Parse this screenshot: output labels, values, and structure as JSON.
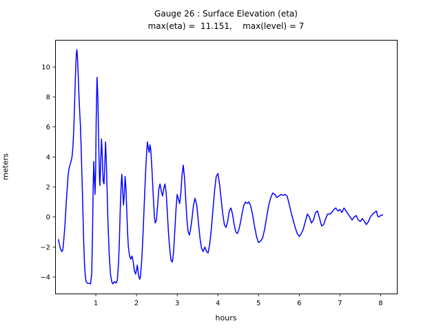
{
  "figure": {
    "background": "#ffffff",
    "axes_edge_color": "#000000"
  },
  "chart_data": {
    "type": "line",
    "title": "Gauge 26 : Surface Elevation (eta)",
    "subtitle": "max(eta) =  11.151,    max(level) = 7",
    "xlabel": "hours",
    "ylabel": "meters",
    "xlim": [
      0.0,
      8.4
    ],
    "ylim": [
      -5.1,
      11.8
    ],
    "xticks": [
      1,
      2,
      3,
      4,
      5,
      6,
      7,
      8
    ],
    "yticks": [
      -4,
      -2,
      0,
      2,
      4,
      6,
      8,
      10
    ],
    "grid": false,
    "legend": "none",
    "line_color": "#0000ff",
    "max_eta": 11.151,
    "max_level": 7,
    "series": [
      {
        "name": "eta",
        "points": [
          [
            0.08,
            -1.5
          ],
          [
            0.1,
            -1.75
          ],
          [
            0.13,
            -2.1
          ],
          [
            0.16,
            -2.3
          ],
          [
            0.19,
            -2.2
          ],
          [
            0.21,
            -1.6
          ],
          [
            0.24,
            -0.6
          ],
          [
            0.27,
            0.8
          ],
          [
            0.3,
            2.0
          ],
          [
            0.32,
            2.8
          ],
          [
            0.34,
            3.2
          ],
          [
            0.37,
            3.5
          ],
          [
            0.4,
            3.8
          ],
          [
            0.42,
            4.1
          ],
          [
            0.44,
            4.8
          ],
          [
            0.46,
            6.0
          ],
          [
            0.48,
            7.6
          ],
          [
            0.5,
            9.4
          ],
          [
            0.52,
            10.8
          ],
          [
            0.535,
            11.151
          ],
          [
            0.55,
            10.6
          ],
          [
            0.57,
            9.2
          ],
          [
            0.59,
            7.8
          ],
          [
            0.62,
            6.2
          ],
          [
            0.64,
            4.6
          ],
          [
            0.66,
            2.6
          ],
          [
            0.68,
            0.6
          ],
          [
            0.7,
            -1.4
          ],
          [
            0.72,
            -3.0
          ],
          [
            0.74,
            -3.9
          ],
          [
            0.76,
            -4.3
          ],
          [
            0.79,
            -4.4
          ],
          [
            0.83,
            -4.42
          ],
          [
            0.87,
            -4.45
          ],
          [
            0.9,
            -3.8
          ],
          [
            0.92,
            -1.0
          ],
          [
            0.935,
            2.0
          ],
          [
            0.95,
            3.7
          ],
          [
            0.965,
            2.6
          ],
          [
            0.98,
            1.5
          ],
          [
            0.995,
            3.0
          ],
          [
            1.01,
            6.5
          ],
          [
            1.03,
            9.3
          ],
          [
            1.05,
            8.0
          ],
          [
            1.07,
            5.0
          ],
          [
            1.09,
            2.6
          ],
          [
            1.1,
            2.1
          ],
          [
            1.12,
            3.5
          ],
          [
            1.14,
            5.2
          ],
          [
            1.16,
            4.0
          ],
          [
            1.18,
            2.4
          ],
          [
            1.2,
            2.2
          ],
          [
            1.22,
            3.3
          ],
          [
            1.24,
            5.0
          ],
          [
            1.26,
            3.6
          ],
          [
            1.28,
            1.5
          ],
          [
            1.3,
            -0.5
          ],
          [
            1.33,
            -2.5
          ],
          [
            1.36,
            -3.8
          ],
          [
            1.39,
            -4.3
          ],
          [
            1.42,
            -4.45
          ],
          [
            1.46,
            -4.3
          ],
          [
            1.5,
            -4.4
          ],
          [
            1.53,
            -4.2
          ],
          [
            1.56,
            -3.0
          ],
          [
            1.58,
            -1.5
          ],
          [
            1.6,
            0.5
          ],
          [
            1.62,
            2.0
          ],
          [
            1.64,
            2.85
          ],
          [
            1.66,
            1.8
          ],
          [
            1.68,
            0.8
          ],
          [
            1.7,
            1.5
          ],
          [
            1.72,
            2.7
          ],
          [
            1.74,
            2.0
          ],
          [
            1.76,
            0.5
          ],
          [
            1.78,
            -1.0
          ],
          [
            1.8,
            -2.0
          ],
          [
            1.83,
            -2.6
          ],
          [
            1.86,
            -2.8
          ],
          [
            1.89,
            -2.6
          ],
          [
            1.92,
            -3.0
          ],
          [
            1.95,
            -3.6
          ],
          [
            1.98,
            -3.8
          ],
          [
            2.0,
            -3.5
          ],
          [
            2.02,
            -3.2
          ],
          [
            2.05,
            -3.9
          ],
          [
            2.08,
            -4.15
          ],
          [
            2.1,
            -3.9
          ],
          [
            2.13,
            -2.8
          ],
          [
            2.16,
            -1.2
          ],
          [
            2.19,
            0.8
          ],
          [
            2.22,
            2.8
          ],
          [
            2.25,
            4.4
          ],
          [
            2.27,
            5.0
          ],
          [
            2.29,
            4.6
          ],
          [
            2.31,
            4.3
          ],
          [
            2.33,
            4.8
          ],
          [
            2.35,
            4.5
          ],
          [
            2.38,
            3.2
          ],
          [
            2.41,
            1.5
          ],
          [
            2.44,
            0.0
          ],
          [
            2.46,
            -0.4
          ],
          [
            2.49,
            -0.2
          ],
          [
            2.52,
            0.8
          ],
          [
            2.55,
            1.9
          ],
          [
            2.58,
            2.2
          ],
          [
            2.61,
            1.7
          ],
          [
            2.64,
            1.4
          ],
          [
            2.67,
            1.9
          ],
          [
            2.7,
            2.2
          ],
          [
            2.73,
            1.6
          ],
          [
            2.76,
            0.2
          ],
          [
            2.79,
            -1.2
          ],
          [
            2.82,
            -2.2
          ],
          [
            2.85,
            -2.9
          ],
          [
            2.88,
            -3.0
          ],
          [
            2.91,
            -2.4
          ],
          [
            2.94,
            -1.0
          ],
          [
            2.97,
            0.5
          ],
          [
            3.0,
            1.5
          ],
          [
            3.03,
            1.2
          ],
          [
            3.06,
            0.9
          ],
          [
            3.09,
            1.6
          ],
          [
            3.12,
            2.8
          ],
          [
            3.15,
            3.45
          ],
          [
            3.18,
            2.6
          ],
          [
            3.21,
            1.2
          ],
          [
            3.24,
            -0.2
          ],
          [
            3.27,
            -1.0
          ],
          [
            3.3,
            -1.2
          ],
          [
            3.33,
            -0.8
          ],
          [
            3.36,
            -0.2
          ],
          [
            3.4,
            0.8
          ],
          [
            3.44,
            1.25
          ],
          [
            3.48,
            0.8
          ],
          [
            3.52,
            -0.3
          ],
          [
            3.56,
            -1.4
          ],
          [
            3.6,
            -2.1
          ],
          [
            3.64,
            -2.3
          ],
          [
            3.68,
            -2.0
          ],
          [
            3.72,
            -2.3
          ],
          [
            3.76,
            -2.4
          ],
          [
            3.8,
            -1.8
          ],
          [
            3.84,
            -0.8
          ],
          [
            3.88,
            0.5
          ],
          [
            3.92,
            1.8
          ],
          [
            3.96,
            2.7
          ],
          [
            4.0,
            2.9
          ],
          [
            4.04,
            2.2
          ],
          [
            4.08,
            1.2
          ],
          [
            4.12,
            0.2
          ],
          [
            4.16,
            -0.5
          ],
          [
            4.2,
            -0.7
          ],
          [
            4.24,
            -0.3
          ],
          [
            4.28,
            0.4
          ],
          [
            4.32,
            0.6
          ],
          [
            4.36,
            0.2
          ],
          [
            4.4,
            -0.5
          ],
          [
            4.44,
            -1.0
          ],
          [
            4.48,
            -1.1
          ],
          [
            4.52,
            -0.8
          ],
          [
            4.56,
            -0.3
          ],
          [
            4.6,
            0.3
          ],
          [
            4.64,
            0.8
          ],
          [
            4.68,
            1.0
          ],
          [
            4.72,
            0.9
          ],
          [
            4.76,
            1.0
          ],
          [
            4.8,
            0.8
          ],
          [
            4.85,
            0.2
          ],
          [
            4.9,
            -0.6
          ],
          [
            4.95,
            -1.3
          ],
          [
            5.0,
            -1.7
          ],
          [
            5.05,
            -1.6
          ],
          [
            5.1,
            -1.4
          ],
          [
            5.15,
            -0.8
          ],
          [
            5.2,
            0.0
          ],
          [
            5.25,
            0.8
          ],
          [
            5.3,
            1.3
          ],
          [
            5.35,
            1.6
          ],
          [
            5.4,
            1.5
          ],
          [
            5.45,
            1.3
          ],
          [
            5.5,
            1.4
          ],
          [
            5.55,
            1.5
          ],
          [
            5.6,
            1.45
          ],
          [
            5.65,
            1.5
          ],
          [
            5.7,
            1.4
          ],
          [
            5.75,
            0.9
          ],
          [
            5.8,
            0.3
          ],
          [
            5.85,
            -0.2
          ],
          [
            5.9,
            -0.7
          ],
          [
            5.95,
            -1.1
          ],
          [
            6.0,
            -1.3
          ],
          [
            6.05,
            -1.1
          ],
          [
            6.1,
            -0.8
          ],
          [
            6.15,
            -0.3
          ],
          [
            6.2,
            0.2
          ],
          [
            6.25,
            0.0
          ],
          [
            6.3,
            -0.4
          ],
          [
            6.35,
            -0.2
          ],
          [
            6.4,
            0.3
          ],
          [
            6.45,
            0.4
          ],
          [
            6.5,
            -0.1
          ],
          [
            6.55,
            -0.6
          ],
          [
            6.6,
            -0.5
          ],
          [
            6.65,
            -0.1
          ],
          [
            6.7,
            0.2
          ],
          [
            6.75,
            0.2
          ],
          [
            6.8,
            0.3
          ],
          [
            6.85,
            0.5
          ],
          [
            6.9,
            0.6
          ],
          [
            6.95,
            0.4
          ],
          [
            7.0,
            0.5
          ],
          [
            7.05,
            0.3
          ],
          [
            7.1,
            0.6
          ],
          [
            7.15,
            0.4
          ],
          [
            7.2,
            0.2
          ],
          [
            7.25,
            0.0
          ],
          [
            7.3,
            -0.2
          ],
          [
            7.35,
            0.0
          ],
          [
            7.4,
            0.1
          ],
          [
            7.45,
            -0.2
          ],
          [
            7.5,
            -0.3
          ],
          [
            7.55,
            -0.1
          ],
          [
            7.6,
            -0.3
          ],
          [
            7.65,
            -0.5
          ],
          [
            7.7,
            -0.3
          ],
          [
            7.75,
            0.0
          ],
          [
            7.8,
            0.2
          ],
          [
            7.85,
            0.3
          ],
          [
            7.9,
            0.4
          ],
          [
            7.92,
            0.1
          ],
          [
            7.95,
            0.0
          ],
          [
            8.0,
            0.1
          ],
          [
            8.05,
            0.15
          ]
        ]
      }
    ]
  }
}
